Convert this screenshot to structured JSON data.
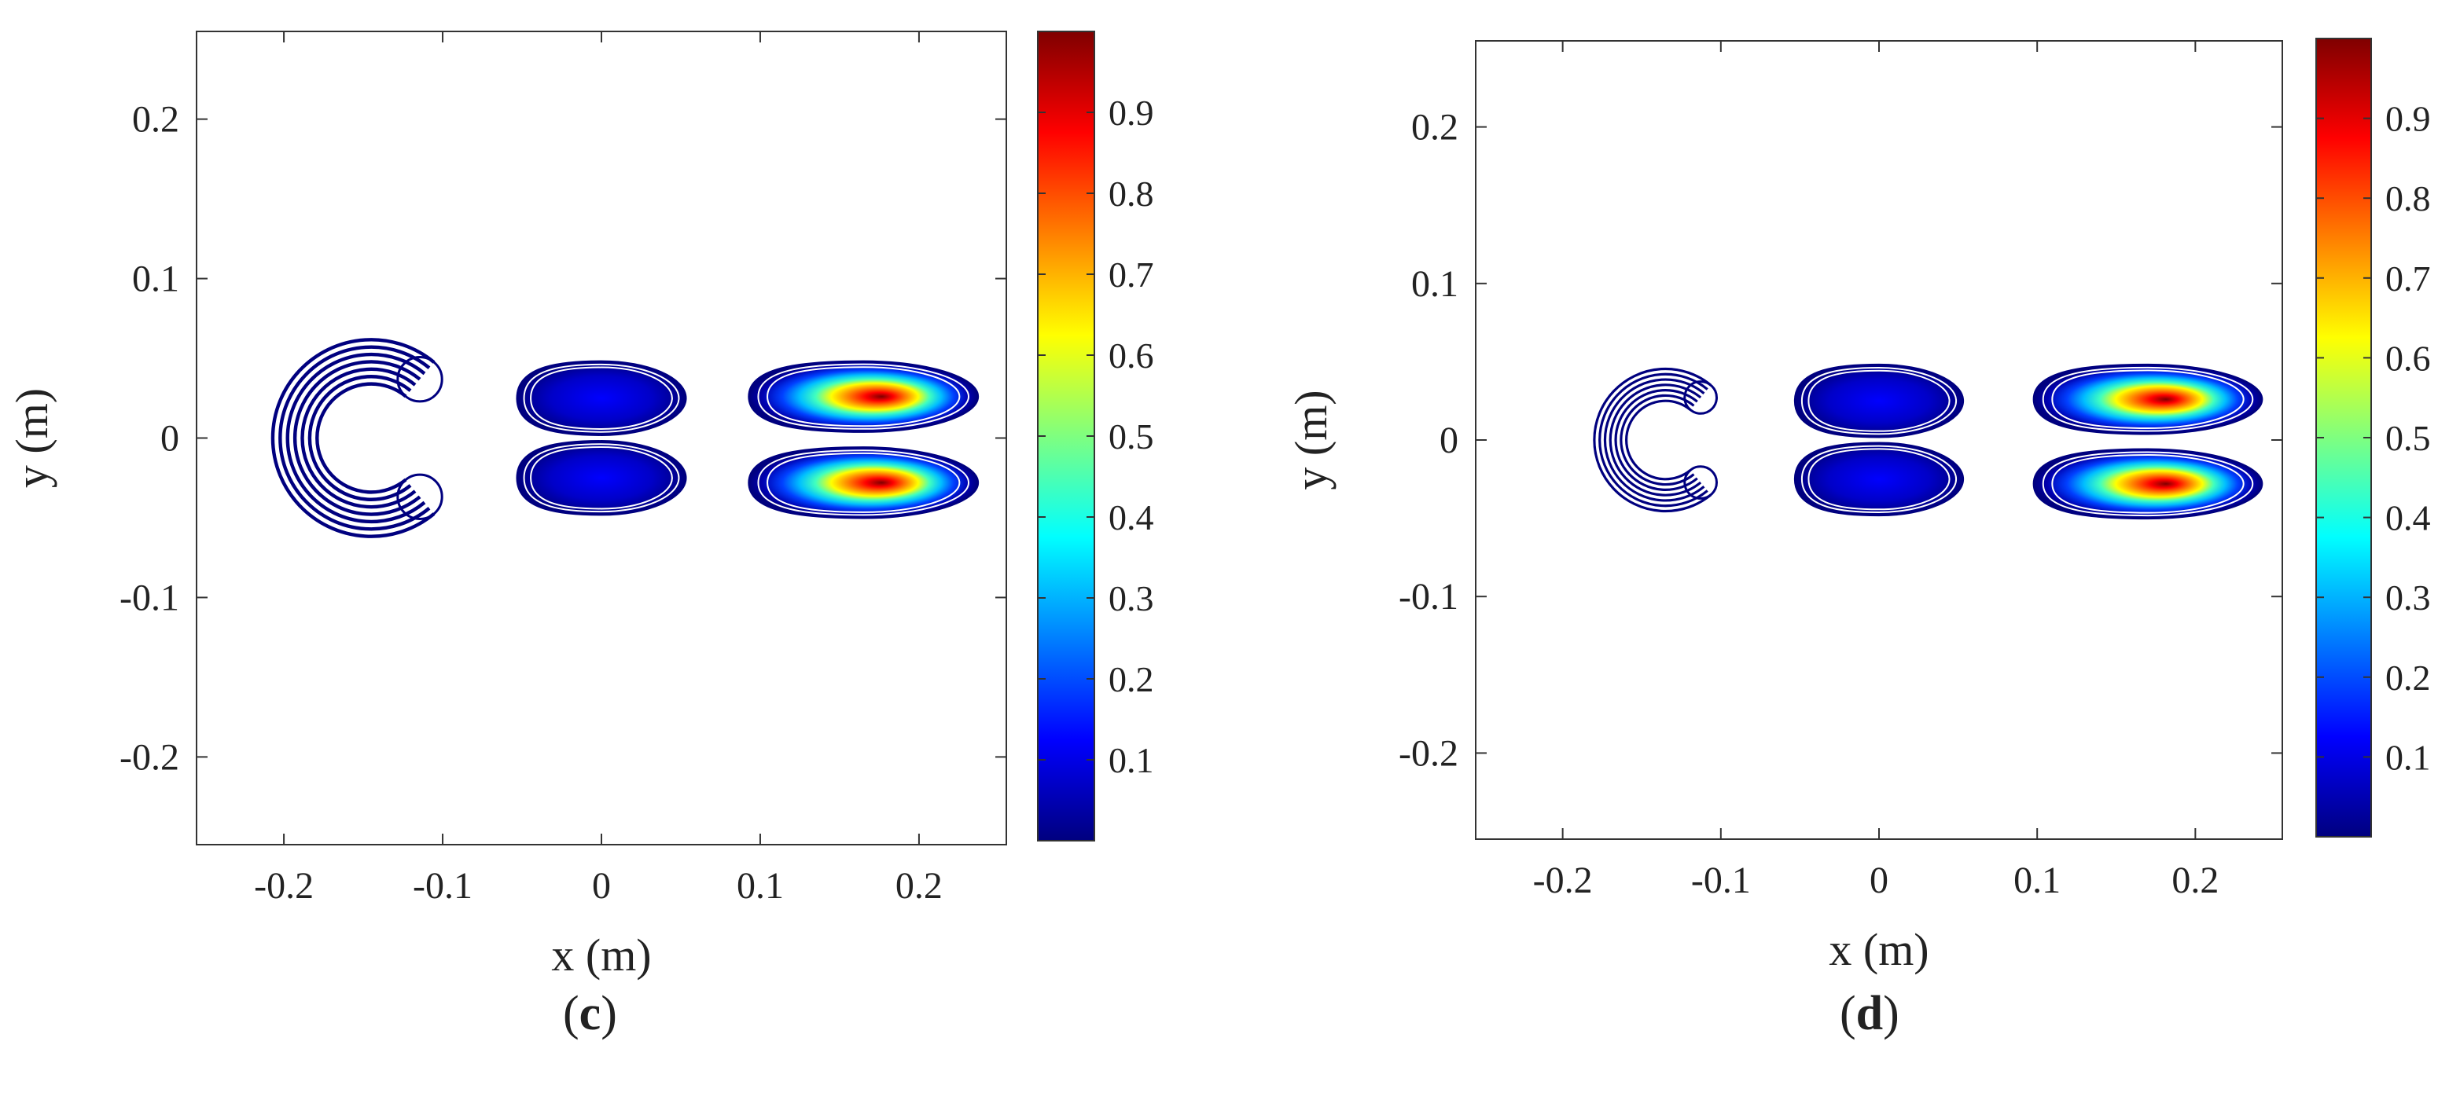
{
  "chart_data": [
    {
      "panel": "c",
      "type": "heatmap",
      "subtype": "filled-contour",
      "xlabel": "x (m)",
      "ylabel": "y (m)",
      "xlim": [
        -0.255,
        0.255
      ],
      "ylim": [
        -0.255,
        0.255
      ],
      "xticks": [
        -0.2,
        -0.1,
        0,
        0.1,
        0.2
      ],
      "xtick_labels": [
        "-0.2",
        "-0.1",
        "0",
        "0.1",
        "0.2"
      ],
      "yticks": [
        -0.2,
        -0.1,
        0,
        0.1,
        0.2
      ],
      "ytick_labels": [
        "-0.2",
        "-0.1",
        "0",
        "0.1",
        "0.2"
      ],
      "grid": false,
      "colormap": "jet",
      "colorbar": {
        "range": [
          0,
          1
        ],
        "ticks": [
          0.1,
          0.2,
          0.3,
          0.4,
          0.5,
          0.6,
          0.7,
          0.8,
          0.9
        ],
        "tick_labels": [
          "0.1",
          "0.2",
          "0.3",
          "0.4",
          "0.5",
          "0.6",
          "0.7",
          "0.8",
          "0.9"
        ]
      },
      "regions": [
        {
          "shape": "c-shape",
          "x": -0.145,
          "y": 0,
          "peak": 0.0
        },
        {
          "shape": "lobe",
          "x": 0.0,
          "y": 0.025,
          "peak": 0.03
        },
        {
          "shape": "lobe",
          "x": 0.0,
          "y": -0.025,
          "peak": 0.03
        },
        {
          "shape": "lobe",
          "x": 0.165,
          "y": 0.026,
          "peak": 1.0
        },
        {
          "shape": "lobe",
          "x": 0.165,
          "y": -0.028,
          "peak": 1.0
        }
      ]
    },
    {
      "panel": "d",
      "type": "heatmap",
      "subtype": "filled-contour",
      "xlabel": "x (m)",
      "ylabel": "y (m)",
      "xlim": [
        -0.255,
        0.255
      ],
      "ylim": [
        -0.255,
        0.255
      ],
      "xticks": [
        -0.2,
        -0.1,
        0,
        0.1,
        0.2
      ],
      "xtick_labels": [
        "-0.2",
        "-0.1",
        "0",
        "0.1",
        "0.2"
      ],
      "yticks": [
        -0.2,
        -0.1,
        0,
        0.1,
        0.2
      ],
      "ytick_labels": [
        "-0.2",
        "-0.1",
        "0",
        "0.1",
        "0.2"
      ],
      "grid": false,
      "colormap": "jet",
      "colorbar": {
        "range": [
          0,
          1
        ],
        "ticks": [
          0.1,
          0.2,
          0.3,
          0.4,
          0.5,
          0.6,
          0.7,
          0.8,
          0.9
        ],
        "tick_labels": [
          "0.1",
          "0.2",
          "0.3",
          "0.4",
          "0.5",
          "0.6",
          "0.7",
          "0.8",
          "0.9"
        ]
      },
      "regions": [
        {
          "shape": "c-shape",
          "x": -0.135,
          "y": 0,
          "peak": 0.0
        },
        {
          "shape": "lobe",
          "x": 0.0,
          "y": 0.025,
          "peak": 0.02
        },
        {
          "shape": "lobe",
          "x": 0.0,
          "y": -0.025,
          "peak": 0.02
        },
        {
          "shape": "lobe",
          "x": 0.17,
          "y": 0.026,
          "peak": 1.0
        },
        {
          "shape": "lobe",
          "x": 0.17,
          "y": -0.028,
          "peak": 1.0
        }
      ]
    }
  ],
  "colors": {
    "jet": [
      "#00007f",
      "#0000ff",
      "#007fff",
      "#00ffff",
      "#7fff7f",
      "#ffff00",
      "#ff7f00",
      "#ff0000",
      "#7f0000"
    ]
  }
}
